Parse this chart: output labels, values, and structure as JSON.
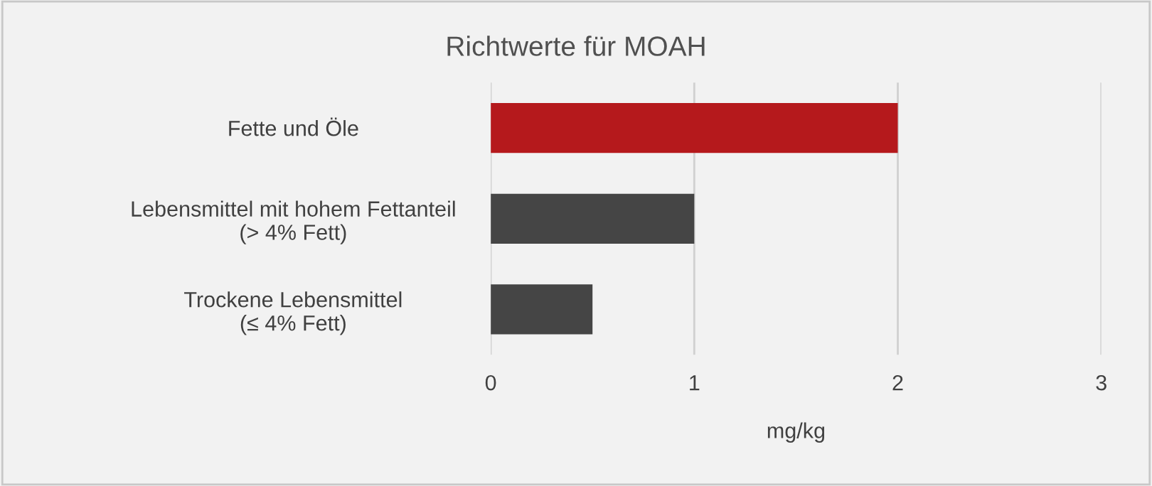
{
  "chart_data": {
    "type": "bar",
    "orientation": "horizontal",
    "title": "Richtwerte für MOAH",
    "xlabel": "mg/kg",
    "categories": [
      "Fette und Öle",
      "Lebensmittel mit hohem Fettanteil\n(> 4% Fett)",
      "Trockene Lebensmittel\n(≤ 4% Fett)"
    ],
    "values": [
      2,
      1,
      0.5
    ],
    "colors": [
      "#b5191c",
      "#454545",
      "#454545"
    ],
    "xlim": [
      0,
      3
    ],
    "xticks": [
      0,
      1,
      2,
      3
    ],
    "grid": "x",
    "legend": false
  }
}
